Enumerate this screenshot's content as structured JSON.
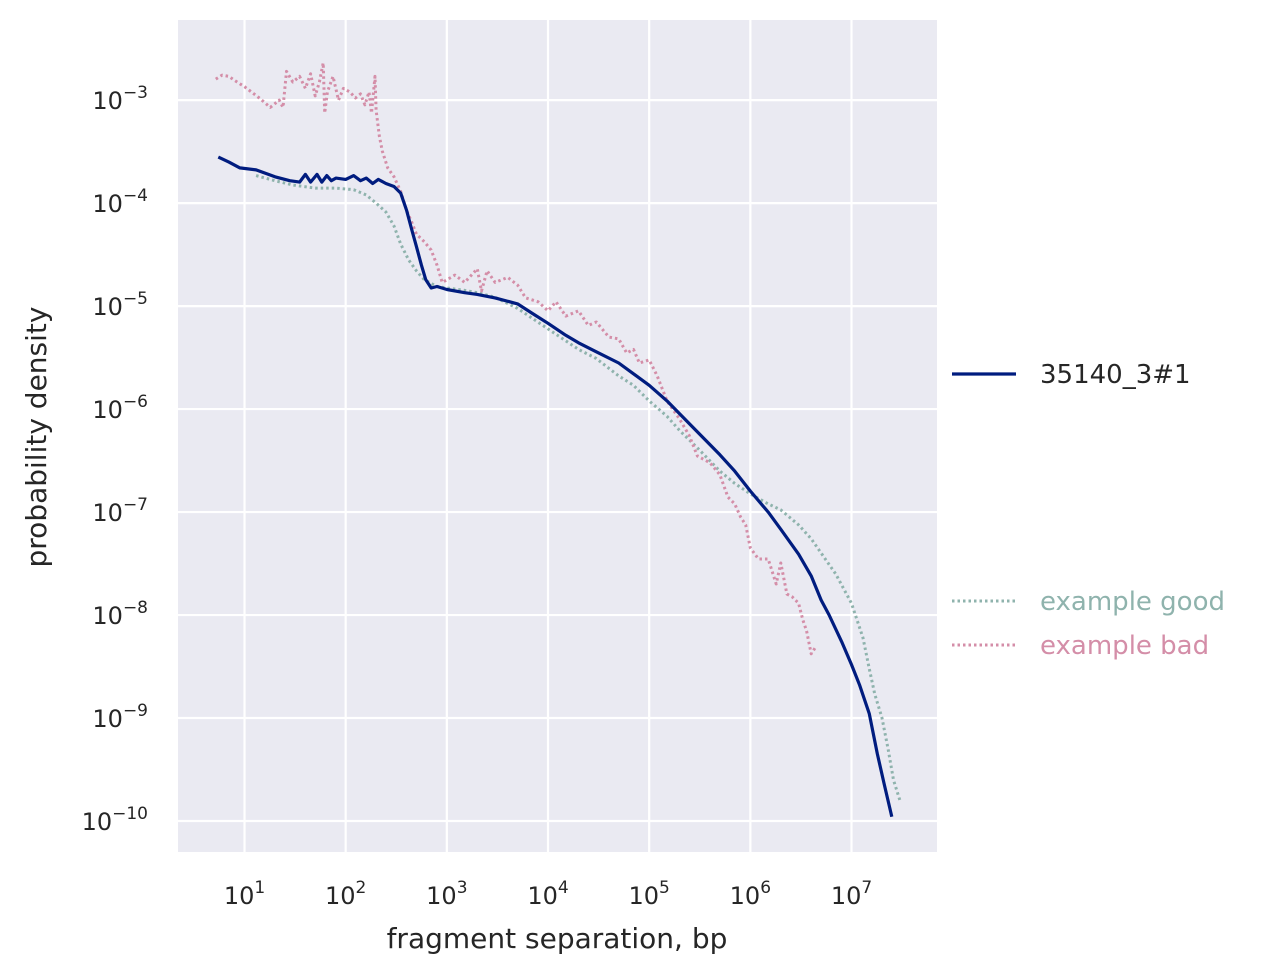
{
  "chart_data": {
    "type": "line",
    "xlabel": "fragment separation, bp",
    "ylabel": "probability density",
    "x_scale": "log",
    "y_scale": "log",
    "xlim": [
      2.2,
      70000000
    ],
    "ylim": [
      5e-11,
      0.006
    ],
    "grid": true,
    "x_ticks": [
      {
        "base": "10",
        "exp": "1",
        "value": 10
      },
      {
        "base": "10",
        "exp": "2",
        "value": 100
      },
      {
        "base": "10",
        "exp": "3",
        "value": 1000
      },
      {
        "base": "10",
        "exp": "4",
        "value": 10000
      },
      {
        "base": "10",
        "exp": "5",
        "value": 100000
      },
      {
        "base": "10",
        "exp": "6",
        "value": 1000000
      },
      {
        "base": "10",
        "exp": "7",
        "value": 10000000
      }
    ],
    "y_ticks": [
      {
        "base": "10",
        "exp": "−3",
        "value": 0.001
      },
      {
        "base": "10",
        "exp": "−4",
        "value": 0.0001
      },
      {
        "base": "10",
        "exp": "−5",
        "value": 1e-05
      },
      {
        "base": "10",
        "exp": "−6",
        "value": 1e-06
      },
      {
        "base": "10",
        "exp": "−7",
        "value": 1e-07
      },
      {
        "base": "10",
        "exp": "−8",
        "value": 1e-08
      },
      {
        "base": "10",
        "exp": "−9",
        "value": 1e-09
      },
      {
        "base": "10",
        "exp": "−10",
        "value": 1e-10
      }
    ],
    "legend": [
      {
        "label": "35140_3#1",
        "style": "solid",
        "color": "#001c7f"
      },
      {
        "label": "example good",
        "style": "dotted",
        "color": "#8fb3ad"
      },
      {
        "label": "example bad",
        "style": "dotted",
        "color": "#d48ea8"
      }
    ],
    "series": [
      {
        "name": "35140_3#1",
        "style": "solid",
        "color": "#001c7f",
        "points": [
          [
            5.5,
            0.00028
          ],
          [
            7,
            0.00025
          ],
          [
            9,
            0.00022
          ],
          [
            13,
            0.00021
          ],
          [
            20,
            0.00018
          ],
          [
            28,
            0.000165
          ],
          [
            35,
            0.00016
          ],
          [
            40,
            0.00019
          ],
          [
            45,
            0.00016
          ],
          [
            52,
            0.00019
          ],
          [
            58,
            0.00016
          ],
          [
            65,
            0.000185
          ],
          [
            72,
            0.000165
          ],
          [
            80,
            0.000175
          ],
          [
            100,
            0.00017
          ],
          [
            120,
            0.000185
          ],
          [
            140,
            0.000165
          ],
          [
            160,
            0.000175
          ],
          [
            185,
            0.000155
          ],
          [
            210,
            0.00017
          ],
          [
            250,
            0.000155
          ],
          [
            300,
            0.000145
          ],
          [
            350,
            0.000125
          ],
          [
            400,
            8.5e-05
          ],
          [
            450,
            5.5e-05
          ],
          [
            500,
            3.8e-05
          ],
          [
            560,
            2.5e-05
          ],
          [
            620,
            1.8e-05
          ],
          [
            700,
            1.5e-05
          ],
          [
            800,
            1.55e-05
          ],
          [
            1000,
            1.45e-05
          ],
          [
            1500,
            1.35e-05
          ],
          [
            2000,
            1.3e-05
          ],
          [
            3000,
            1.2e-05
          ],
          [
            5000,
            1.05e-05
          ],
          [
            7000,
            8.5e-06
          ],
          [
            10000,
            6.8e-06
          ],
          [
            15000,
            5.2e-06
          ],
          [
            20000,
            4.4e-06
          ],
          [
            30000,
            3.6e-06
          ],
          [
            50000,
            2.8e-06
          ],
          [
            70000,
            2.2e-06
          ],
          [
            100000,
            1.7e-06
          ],
          [
            150000,
            1.2e-06
          ],
          [
            200000,
            9e-07
          ],
          [
            300000,
            6e-07
          ],
          [
            500000,
            3.6e-07
          ],
          [
            700000,
            2.5e-07
          ],
          [
            1000000,
            1.6e-07
          ],
          [
            1500000,
            1e-07
          ],
          [
            2000000,
            6.8e-08
          ],
          [
            3000000,
            3.9e-08
          ],
          [
            4000000,
            2.4e-08
          ],
          [
            5000000,
            1.4e-08
          ],
          [
            6000000,
            1e-08
          ],
          [
            8000000,
            5.5e-09
          ],
          [
            10000000,
            3.3e-09
          ],
          [
            12000000,
            2.1e-09
          ],
          [
            15000000,
            1.1e-09
          ],
          [
            18000000,
            4.5e-10
          ],
          [
            21000000,
            2.3e-10
          ],
          [
            25000000,
            1.1e-10
          ]
        ]
      },
      {
        "name": "example good",
        "style": "dotted",
        "color": "#8fb3ad",
        "points": [
          [
            13,
            0.000185
          ],
          [
            20,
            0.000165
          ],
          [
            30,
            0.00015
          ],
          [
            50,
            0.00014
          ],
          [
            80,
            0.00014
          ],
          [
            120,
            0.000135
          ],
          [
            160,
            0.00012
          ],
          [
            200,
            0.0001
          ],
          [
            250,
            8.2e-05
          ],
          [
            300,
            6e-05
          ],
          [
            350,
            4e-05
          ],
          [
            420,
            2.8e-05
          ],
          [
            500,
            2.2e-05
          ],
          [
            600,
            1.8e-05
          ],
          [
            800,
            1.55e-05
          ],
          [
            1000,
            1.5e-05
          ],
          [
            1500,
            1.42e-05
          ],
          [
            2000,
            1.35e-05
          ],
          [
            3000,
            1.22e-05
          ],
          [
            5000,
            9.5e-06
          ],
          [
            10000,
            6e-06
          ],
          [
            20000,
            3.8e-06
          ],
          [
            30000,
            3.1e-06
          ],
          [
            50000,
            2.1e-06
          ],
          [
            70000,
            1.7e-06
          ],
          [
            100000,
            1.2e-06
          ],
          [
            150000,
            8.5e-07
          ],
          [
            200000,
            6.2e-07
          ],
          [
            300000,
            4.2e-07
          ],
          [
            500000,
            2.5e-07
          ],
          [
            700000,
            1.9e-07
          ],
          [
            1000000,
            1.5e-07
          ],
          [
            1500000,
            1.2e-07
          ],
          [
            2000000,
            1.05e-07
          ],
          [
            3000000,
            7.5e-08
          ],
          [
            4000000,
            5.5e-08
          ],
          [
            5000000,
            4e-08
          ],
          [
            7000000,
            2.5e-08
          ],
          [
            10000000,
            1.3e-08
          ],
          [
            13000000,
            6e-09
          ],
          [
            15000000,
            3e-09
          ],
          [
            17000000,
            1.7e-09
          ],
          [
            20000000,
            1e-09
          ],
          [
            23000000,
            5e-10
          ],
          [
            26000000,
            2.5e-10
          ],
          [
            30000000,
            1.6e-10
          ]
        ]
      },
      {
        "name": "example bad",
        "style": "dotted",
        "color": "#d48ea8",
        "points": [
          [
            5.2,
            0.0016
          ],
          [
            6,
            0.00175
          ],
          [
            7,
            0.0017
          ],
          [
            8,
            0.00155
          ],
          [
            10,
            0.00135
          ],
          [
            14,
            0.00105
          ],
          [
            18,
            0.00085
          ],
          [
            22,
            0.001
          ],
          [
            24,
            0.00085
          ],
          [
            26,
            0.0019
          ],
          [
            30,
            0.0015
          ],
          [
            35,
            0.0017
          ],
          [
            40,
            0.0013
          ],
          [
            45,
            0.0018
          ],
          [
            50,
            0.0011
          ],
          [
            55,
            0.0015
          ],
          [
            60,
            0.0023
          ],
          [
            62,
            0.00075
          ],
          [
            66,
            0.0012
          ],
          [
            75,
            0.0017
          ],
          [
            85,
            0.001
          ],
          [
            95,
            0.0013
          ],
          [
            110,
            0.0012
          ],
          [
            125,
            0.00105
          ],
          [
            140,
            0.00115
          ],
          [
            155,
            0.0009
          ],
          [
            170,
            0.0012
          ],
          [
            180,
            0.00075
          ],
          [
            195,
            0.0017
          ],
          [
            200,
            0.0008
          ],
          [
            215,
            0.00045
          ],
          [
            230,
            0.00032
          ],
          [
            260,
            0.00022
          ],
          [
            300,
            0.00018
          ],
          [
            350,
            0.00013
          ],
          [
            400,
            8.5e-05
          ],
          [
            450,
            6.5e-05
          ],
          [
            500,
            5e-05
          ],
          [
            600,
            4.2e-05
          ],
          [
            700,
            3.5e-05
          ],
          [
            800,
            2.5e-05
          ],
          [
            900,
            1.7e-05
          ],
          [
            1000,
            1.8e-05
          ],
          [
            1200,
            2e-05
          ],
          [
            1500,
            1.7e-05
          ],
          [
            2000,
            2.3e-05
          ],
          [
            2200,
            1.4e-05
          ],
          [
            2500,
            2.2e-05
          ],
          [
            3000,
            1.7e-05
          ],
          [
            4000,
            1.9e-05
          ],
          [
            5000,
            1.6e-05
          ],
          [
            6000,
            1.2e-05
          ],
          [
            8000,
            1.1e-05
          ],
          [
            10000,
            9e-06
          ],
          [
            12000,
            1.1e-05
          ],
          [
            15000,
            8e-06
          ],
          [
            20000,
            9e-06
          ],
          [
            25000,
            6.5e-06
          ],
          [
            30000,
            7e-06
          ],
          [
            40000,
            5e-06
          ],
          [
            50000,
            4.8e-06
          ],
          [
            60000,
            3.5e-06
          ],
          [
            70000,
            3.8e-06
          ],
          [
            80000,
            2.8e-06
          ],
          [
            100000,
            3e-06
          ],
          [
            120000,
            2.1e-06
          ],
          [
            150000,
            1.2e-06
          ],
          [
            200000,
            8e-07
          ],
          [
            250000,
            5.5e-07
          ],
          [
            300000,
            3.5e-07
          ],
          [
            400000,
            3e-07
          ],
          [
            500000,
            2.3e-07
          ],
          [
            600000,
            1.4e-07
          ],
          [
            700000,
            1.2e-07
          ],
          [
            800000,
            9e-08
          ],
          [
            900000,
            7.5e-08
          ],
          [
            1000000,
            4.5e-08
          ],
          [
            1200000,
            3.5e-08
          ],
          [
            1500000,
            3.5e-08
          ],
          [
            1800000,
            2e-08
          ],
          [
            2000000,
            3.2e-08
          ],
          [
            2300000,
            1.6e-08
          ],
          [
            2600000,
            1.5e-08
          ],
          [
            3000000,
            1.3e-08
          ],
          [
            3300000,
            9e-09
          ],
          [
            3600000,
            7e-09
          ],
          [
            4000000,
            4.2e-09
          ],
          [
            4500000,
            5e-09
          ]
        ]
      }
    ]
  }
}
